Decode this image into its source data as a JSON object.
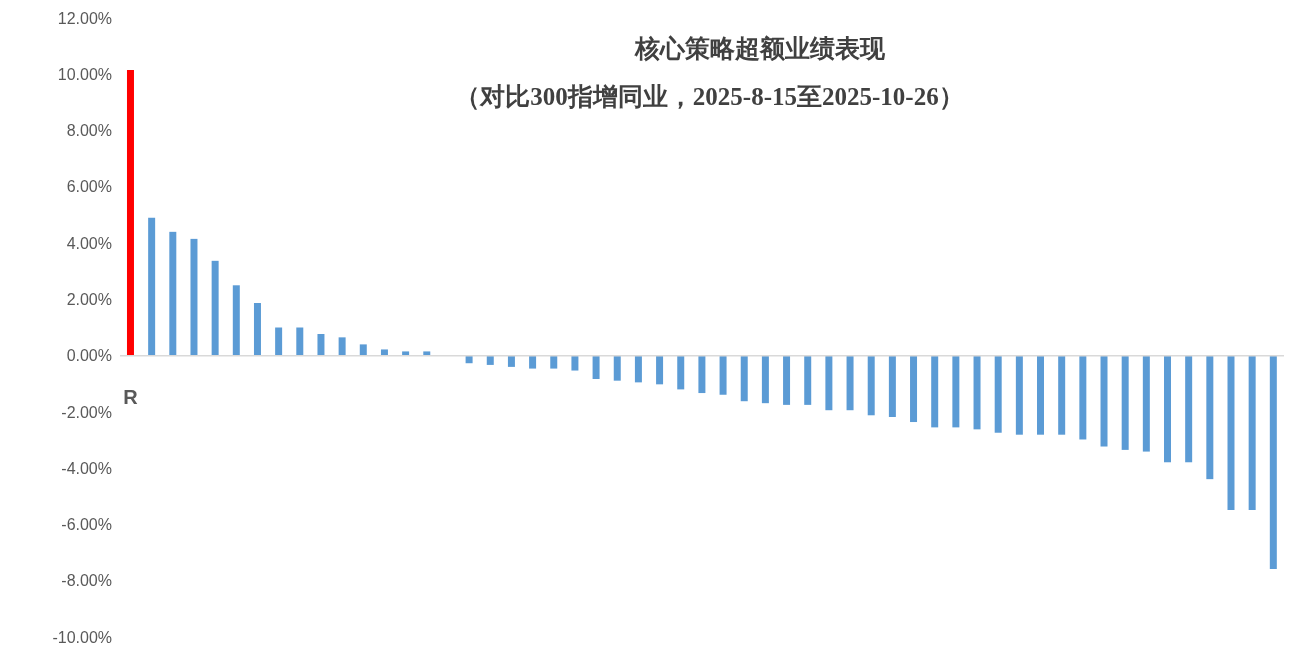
{
  "chart_data": {
    "type": "bar",
    "title": "核心策略超额业绩表现",
    "subtitle": "（对比300指增同业，2025-8-15至2025-10-26）",
    "categories": [
      "R",
      null,
      null,
      null,
      null,
      null,
      null,
      null,
      null,
      null,
      null,
      null,
      null,
      null,
      null,
      null,
      null,
      null,
      null,
      null,
      null,
      null,
      null,
      null,
      null,
      null,
      null,
      null,
      null,
      null,
      null,
      null,
      null,
      null,
      null,
      null,
      null,
      null,
      null,
      null,
      null,
      null,
      null,
      null,
      null,
      null,
      null,
      null,
      null,
      null,
      null,
      null,
      null,
      null,
      null
    ],
    "values": [
      10.15,
      4.9,
      4.4,
      4.15,
      3.37,
      2.5,
      1.87,
      1.0,
      1.0,
      0.77,
      0.65,
      0.4,
      0.22,
      0.15,
      0.15,
      0,
      -0.27,
      -0.33,
      -0.4,
      -0.46,
      -0.46,
      -0.53,
      -0.83,
      -0.89,
      -0.95,
      -1.02,
      -1.2,
      -1.33,
      -1.39,
      -1.62,
      -1.69,
      -1.75,
      -1.75,
      -1.94,
      -1.94,
      -2.12,
      -2.18,
      -2.36,
      -2.55,
      -2.55,
      -2.62,
      -2.74,
      -2.81,
      -2.81,
      -2.81,
      -2.98,
      -3.23,
      -3.35,
      -3.41,
      -3.79,
      -3.79,
      -4.39,
      -5.49,
      -5.49,
      -7.58
    ],
    "colors": [
      "#ff0000",
      "#5b9bd5",
      "#5b9bd5",
      "#5b9bd5",
      "#5b9bd5",
      "#5b9bd5",
      "#5b9bd5",
      "#5b9bd5",
      "#5b9bd5",
      "#5b9bd5",
      "#5b9bd5",
      "#5b9bd5",
      "#5b9bd5",
      "#5b9bd5",
      "#5b9bd5",
      "#5b9bd5",
      "#5b9bd5",
      "#5b9bd5",
      "#5b9bd5",
      "#5b9bd5",
      "#5b9bd5",
      "#5b9bd5",
      "#5b9bd5",
      "#5b9bd5",
      "#5b9bd5",
      "#5b9bd5",
      "#5b9bd5",
      "#5b9bd5",
      "#5b9bd5",
      "#5b9bd5",
      "#5b9bd5",
      "#5b9bd5",
      "#5b9bd5",
      "#5b9bd5",
      "#5b9bd5",
      "#5b9bd5",
      "#5b9bd5",
      "#5b9bd5",
      "#5b9bd5",
      "#5b9bd5",
      "#5b9bd5",
      "#5b9bd5",
      "#5b9bd5",
      "#5b9bd5",
      "#5b9bd5",
      "#5b9bd5",
      "#5b9bd5",
      "#5b9bd5",
      "#5b9bd5",
      "#5b9bd5",
      "#5b9bd5",
      "#5b9bd5",
      "#5b9bd5",
      "#5b9bd5",
      "#5b9bd5"
    ],
    "ylim": [
      -10,
      12
    ],
    "yticks": [
      {
        "value": -10,
        "label": "-10.00%"
      },
      {
        "value": -8,
        "label": "-8.00%"
      },
      {
        "value": -6,
        "label": "-6.00%"
      },
      {
        "value": -4,
        "label": "-4.00%"
      },
      {
        "value": -2,
        "label": "-2.00%"
      },
      {
        "value": 0,
        "label": "0.00%"
      },
      {
        "value": 2,
        "label": "2.00%"
      },
      {
        "value": 4,
        "label": "4.00%"
      },
      {
        "value": 6,
        "label": "6.00%"
      },
      {
        "value": 8,
        "label": "8.00%"
      },
      {
        "value": 10,
        "label": "10.00%"
      },
      {
        "value": 12,
        "label": "12.00%"
      }
    ],
    "ref_lines": [
      {
        "axis": "y",
        "value": 0,
        "color": "#d9d9d9"
      }
    ],
    "grid": false,
    "legend": false
  }
}
